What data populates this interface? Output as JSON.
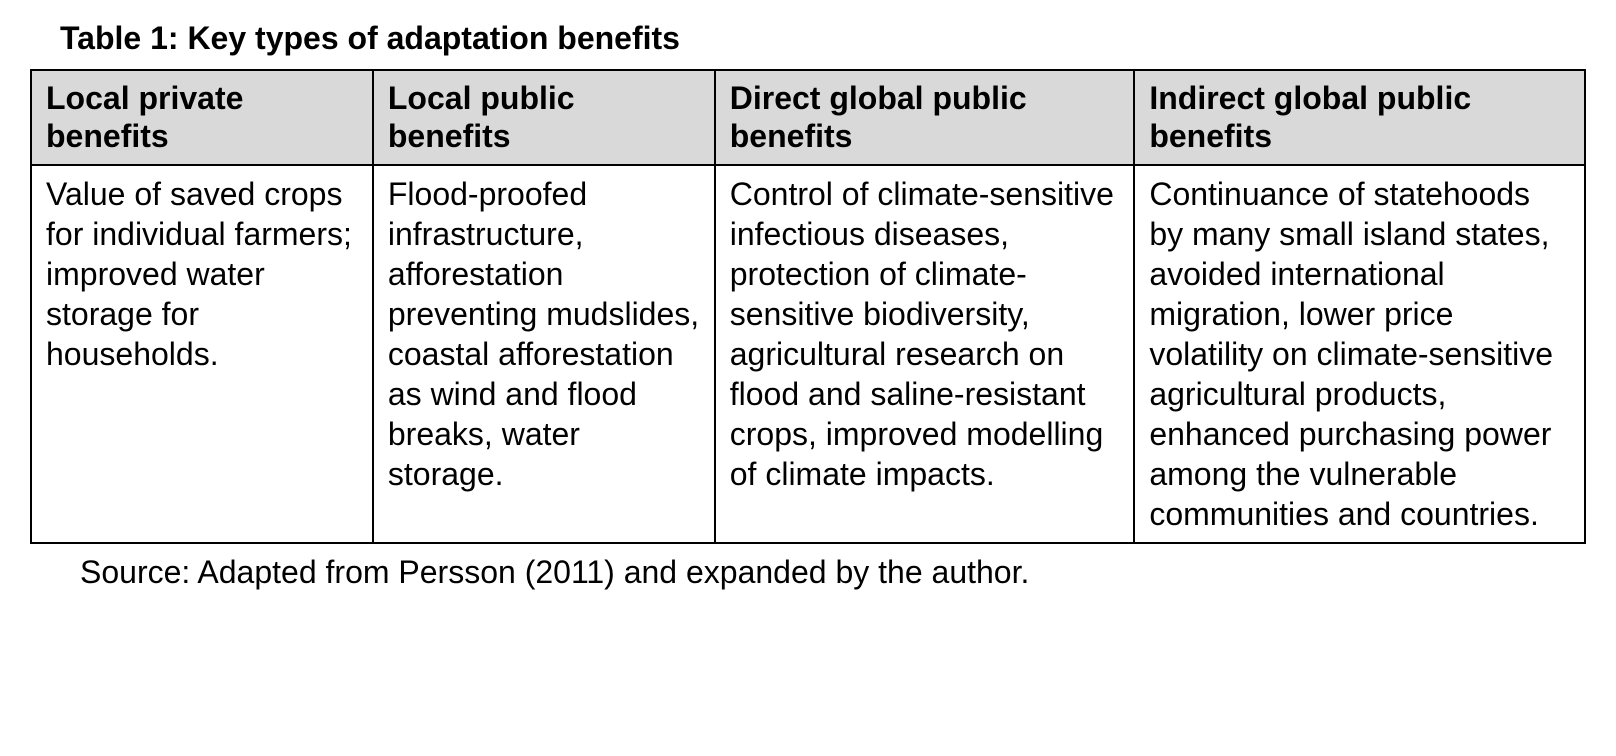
{
  "table": {
    "type": "table",
    "title": "Table 1: Key types of adaptation benefits",
    "title_fontsize": 32,
    "title_fontweight": "bold",
    "header_background_color": "#d9d9d9",
    "border_color": "#000000",
    "border_width": 2,
    "background_color": "#ffffff",
    "text_color": "#000000",
    "cell_fontsize": 32,
    "columns": [
      {
        "label": "Local private benefits",
        "width_pct": 22
      },
      {
        "label": "Local public benefits",
        "width_pct": 22
      },
      {
        "label": "Direct global public benefits",
        "width_pct": 27
      },
      {
        "label": "Indirect global public benefits",
        "width_pct": 29
      }
    ],
    "rows": [
      [
        "Value of saved crops for individual farmers; improved water storage for households.",
        "Flood-proofed infrastructure, afforestation preventing mudslides, coastal afforestation as wind and flood breaks, water storage.",
        "Control of climate-sensitive infectious diseases, protection of climate-sensitive biodiversity, agricultural research on flood and saline-resistant crops, improved modelling of climate impacts.",
        "Continuance of statehoods by many small island states, avoided international migration, lower price volatility on climate-sensitive agricultural products, enhanced purchasing power among the vulnerable communities and countries."
      ]
    ],
    "source": "Source: Adapted from Persson (2011) and expanded by the author."
  }
}
